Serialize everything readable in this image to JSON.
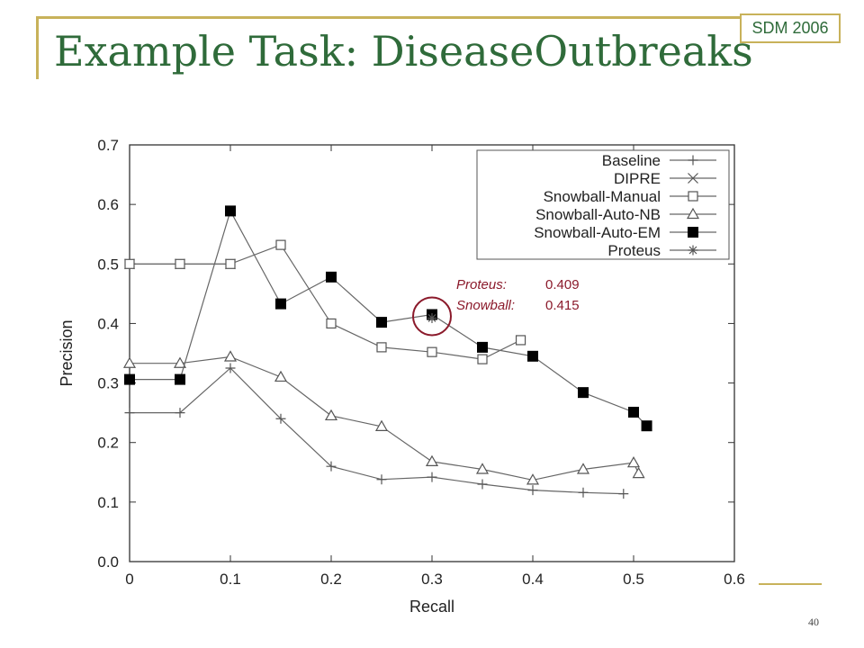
{
  "slide": {
    "title": "Example Task: DiseaseOutbreaks",
    "badge": "SDM 2006",
    "page_number": "40",
    "colors": {
      "title": "#2f6b3a",
      "frame": "#c8b25a",
      "annotation": "#8b1a2b"
    }
  },
  "chart_data": {
    "type": "line",
    "title": "",
    "xlabel": "Recall",
    "ylabel": "Precision",
    "xlim": [
      0,
      0.6
    ],
    "ylim": [
      0,
      0.7
    ],
    "xticks": [
      "0",
      "0.1",
      "0.2",
      "0.3",
      "0.4",
      "0.5",
      "0.6"
    ],
    "yticks": [
      "0.0",
      "0.1",
      "0.2",
      "0.3",
      "0.4",
      "0.5",
      "0.6",
      "0.7"
    ],
    "legend_position": "top-right",
    "grid": false,
    "series": [
      {
        "name": "Baseline",
        "marker": "plus",
        "points": [
          [
            0,
            0.25
          ],
          [
            0.05,
            0.25
          ],
          [
            0.1,
            0.325
          ],
          [
            0.15,
            0.24
          ],
          [
            0.2,
            0.16
          ],
          [
            0.25,
            0.138
          ],
          [
            0.3,
            0.142
          ],
          [
            0.35,
            0.13
          ],
          [
            0.4,
            0.12
          ],
          [
            0.45,
            0.116
          ],
          [
            0.49,
            0.114
          ]
        ]
      },
      {
        "name": "DIPRE",
        "marker": "x",
        "points": [
          [
            0,
            0.5
          ],
          [
            0.05,
            0.5
          ],
          [
            0.1,
            0.5
          ]
        ]
      },
      {
        "name": "Snowball-Manual",
        "marker": "square-open",
        "points": [
          [
            0,
            0.5
          ],
          [
            0.05,
            0.5
          ],
          [
            0.1,
            0.5
          ],
          [
            0.15,
            0.532
          ],
          [
            0.2,
            0.4
          ],
          [
            0.25,
            0.36
          ],
          [
            0.3,
            0.352
          ],
          [
            0.35,
            0.34
          ],
          [
            0.388,
            0.372
          ]
        ]
      },
      {
        "name": "Snowball-Auto-NB",
        "marker": "triangle-open",
        "points": [
          [
            0,
            0.333
          ],
          [
            0.05,
            0.333
          ],
          [
            0.1,
            0.344
          ],
          [
            0.15,
            0.31
          ],
          [
            0.2,
            0.245
          ],
          [
            0.25,
            0.227
          ],
          [
            0.3,
            0.168
          ],
          [
            0.35,
            0.155
          ],
          [
            0.4,
            0.137
          ],
          [
            0.45,
            0.155
          ],
          [
            0.5,
            0.166
          ],
          [
            0.505,
            0.148
          ]
        ]
      },
      {
        "name": "Snowball-Auto-EM",
        "marker": "square-filled",
        "points": [
          [
            0,
            0.306
          ],
          [
            0.05,
            0.306
          ],
          [
            0.1,
            0.589
          ],
          [
            0.15,
            0.433
          ],
          [
            0.2,
            0.478
          ],
          [
            0.25,
            0.402
          ],
          [
            0.3,
            0.415
          ],
          [
            0.35,
            0.36
          ],
          [
            0.4,
            0.345
          ],
          [
            0.45,
            0.284
          ],
          [
            0.5,
            0.251
          ],
          [
            0.513,
            0.228
          ]
        ]
      },
      {
        "name": "Proteus",
        "marker": "asterisk",
        "points": [
          [
            0.3,
            0.409
          ]
        ]
      }
    ],
    "annotation": {
      "rows": [
        {
          "label": "Proteus:",
          "value": "0.409"
        },
        {
          "label": "Snowball:",
          "value": "0.415"
        }
      ],
      "circle_at": [
        0.3,
        0.412
      ]
    }
  }
}
